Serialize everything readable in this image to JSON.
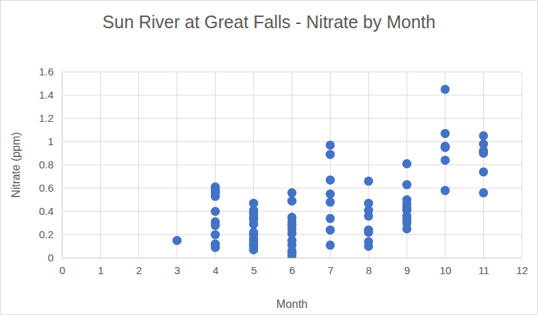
{
  "chart_data": {
    "type": "scatter",
    "title": "Sun River at Great Falls - Nitrate by Month",
    "x_label": "Month",
    "y_label": "Nitrate (ppm)",
    "x": [
      3,
      4,
      4,
      4,
      4,
      4,
      4,
      4,
      4,
      4,
      4,
      5,
      5,
      5,
      5,
      5,
      5,
      5,
      5,
      5,
      5,
      5,
      5,
      5,
      6,
      6,
      6,
      6,
      6,
      6,
      6,
      6,
      6,
      6,
      6,
      6,
      7,
      7,
      7,
      7,
      7,
      7,
      7,
      7,
      8,
      8,
      8,
      8,
      8,
      8,
      8,
      8,
      9,
      9,
      9,
      9,
      9,
      9,
      9,
      9,
      9,
      9,
      10,
      10,
      10,
      10,
      10,
      10,
      11,
      11,
      11,
      11,
      11,
      11
    ],
    "values": [
      0.15,
      0.61,
      0.58,
      0.56,
      0.53,
      0.4,
      0.31,
      0.28,
      0.2,
      0.12,
      0.09,
      0.47,
      0.41,
      0.38,
      0.35,
      0.33,
      0.29,
      0.22,
      0.2,
      0.17,
      0.15,
      0.12,
      0.1,
      0.07,
      0.56,
      0.49,
      0.35,
      0.31,
      0.28,
      0.25,
      0.21,
      0.15,
      0.11,
      0.06,
      0.04,
      0.02,
      0.97,
      0.89,
      0.67,
      0.55,
      0.48,
      0.34,
      0.24,
      0.11,
      0.66,
      0.47,
      0.41,
      0.36,
      0.24,
      0.22,
      0.14,
      0.1,
      0.81,
      0.63,
      0.5,
      0.46,
      0.43,
      0.41,
      0.36,
      0.33,
      0.3,
      0.25,
      1.45,
      1.07,
      0.96,
      0.95,
      0.84,
      0.58,
      1.05,
      0.98,
      0.92,
      0.9,
      0.74,
      0.56
    ],
    "color": "#4472c4",
    "marker": "circle",
    "xlim": [
      0,
      12
    ],
    "xticks": [
      0,
      1,
      2,
      3,
      4,
      5,
      6,
      7,
      8,
      9,
      10,
      11,
      12
    ],
    "ylim": [
      0,
      1.6
    ],
    "yticks": [
      0,
      0.2,
      0.4,
      0.6,
      0.8,
      1,
      1.2,
      1.4,
      1.6
    ],
    "grid": true
  }
}
